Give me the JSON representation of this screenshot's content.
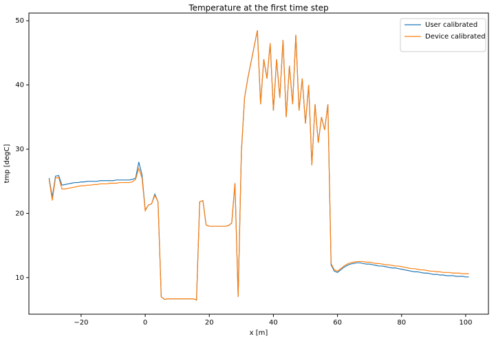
{
  "chart_data": {
    "type": "line",
    "title": "Temperature at the first time step",
    "x_label": "x [m]",
    "y_label": "tmp [degC]",
    "x": [
      -30,
      -29,
      -28,
      -27,
      -26,
      -25,
      -24,
      -23,
      -22,
      -21,
      -20,
      -19,
      -18,
      -17,
      -16,
      -15,
      -14,
      -13,
      -12,
      -11,
      -10,
      -9,
      -8,
      -7,
      -6,
      -5,
      -4,
      -3,
      -2,
      -1,
      0,
      1,
      2,
      3,
      4,
      5,
      6,
      7,
      8,
      9,
      10,
      11,
      12,
      13,
      14,
      15,
      16,
      17,
      18,
      19,
      20,
      21,
      22,
      23,
      24,
      25,
      26,
      27,
      28,
      29,
      30,
      31,
      32,
      33,
      34,
      35,
      36,
      37,
      38,
      39,
      40,
      41,
      42,
      43,
      44,
      45,
      46,
      47,
      48,
      49,
      50,
      51,
      52,
      53,
      54,
      55,
      56,
      57,
      58,
      59,
      60,
      61,
      62,
      63,
      64,
      65,
      66,
      67,
      68,
      69,
      70,
      71,
      72,
      73,
      74,
      75,
      76,
      77,
      78,
      79,
      80,
      81,
      82,
      83,
      84,
      85,
      86,
      87,
      88,
      89,
      90,
      91,
      92,
      93,
      94,
      95,
      96,
      97,
      98,
      99,
      100,
      101
    ],
    "series": [
      {
        "name": "User calibrated",
        "color": "#1f77b4",
        "values": [
          25.5,
          22.5,
          25.8,
          25.9,
          24.4,
          24.5,
          24.6,
          24.7,
          24.8,
          24.8,
          24.9,
          24.9,
          25.0,
          25.0,
          25.0,
          25.0,
          25.1,
          25.1,
          25.1,
          25.1,
          25.1,
          25.2,
          25.2,
          25.2,
          25.2,
          25.2,
          25.3,
          25.5,
          28.0,
          26.0,
          20.5,
          21.3,
          21.5,
          23.0,
          21.8,
          7.0,
          6.6,
          6.7,
          6.7,
          6.7,
          6.7,
          6.7,
          6.7,
          6.7,
          6.7,
          6.7,
          6.5,
          21.8,
          22.0,
          18.2,
          18.0,
          18.0,
          18.0,
          18.0,
          18.0,
          18.0,
          18.1,
          18.5,
          24.7,
          7.0,
          29.5,
          38.0,
          41.0,
          43.5,
          46.0,
          48.5,
          37.0,
          44.0,
          41.0,
          46.5,
          36.0,
          44.0,
          38.0,
          47.0,
          35.0,
          43.0,
          37.0,
          47.8,
          36.0,
          41.0,
          34.0,
          40.0,
          27.5,
          37.0,
          31.0,
          35.0,
          33.0,
          37.0,
          12.0,
          11.0,
          10.8,
          11.2,
          11.6,
          11.9,
          12.1,
          12.2,
          12.3,
          12.3,
          12.2,
          12.1,
          12.1,
          12.0,
          11.9,
          11.8,
          11.8,
          11.7,
          11.6,
          11.5,
          11.5,
          11.4,
          11.3,
          11.2,
          11.1,
          11.0,
          10.9,
          10.9,
          10.8,
          10.7,
          10.7,
          10.6,
          10.5,
          10.5,
          10.4,
          10.4,
          10.3,
          10.3,
          10.3,
          10.2,
          10.2,
          10.2,
          10.1,
          10.1
        ]
      },
      {
        "name": "Device calibrated",
        "color": "#ff7f0e",
        "values": [
          25.3,
          22.0,
          25.5,
          25.6,
          23.8,
          23.8,
          23.9,
          24.0,
          24.1,
          24.2,
          24.3,
          24.3,
          24.4,
          24.4,
          24.5,
          24.5,
          24.6,
          24.6,
          24.6,
          24.7,
          24.7,
          24.7,
          24.8,
          24.8,
          24.8,
          24.8,
          24.9,
          25.3,
          27.0,
          25.5,
          20.4,
          21.3,
          21.5,
          22.8,
          21.8,
          7.0,
          6.6,
          6.7,
          6.7,
          6.7,
          6.7,
          6.7,
          6.7,
          6.7,
          6.7,
          6.7,
          6.5,
          21.8,
          22.0,
          18.2,
          18.0,
          18.0,
          18.0,
          18.0,
          18.0,
          18.0,
          18.1,
          18.5,
          24.7,
          7.0,
          29.5,
          38.0,
          41.0,
          43.5,
          46.0,
          48.5,
          37.0,
          44.0,
          41.0,
          46.5,
          36.0,
          44.0,
          38.0,
          47.0,
          35.0,
          43.0,
          37.0,
          47.8,
          36.0,
          41.0,
          34.0,
          40.0,
          27.5,
          37.0,
          31.0,
          35.0,
          33.0,
          37.0,
          12.2,
          11.2,
          11.0,
          11.4,
          11.8,
          12.1,
          12.3,
          12.4,
          12.5,
          12.5,
          12.5,
          12.4,
          12.4,
          12.3,
          12.2,
          12.2,
          12.1,
          12.0,
          12.0,
          11.9,
          11.8,
          11.8,
          11.7,
          11.6,
          11.5,
          11.4,
          11.4,
          11.3,
          11.2,
          11.2,
          11.1,
          11.0,
          11.0,
          10.9,
          10.9,
          10.8,
          10.8,
          10.8,
          10.7,
          10.7,
          10.7,
          10.6,
          10.6,
          10.6
        ]
      }
    ],
    "xlim": [
      -36.3,
      107.1
    ],
    "ylim": [
      4.3,
      51.2
    ],
    "xticks": [
      {
        "value": -20,
        "label": "−20"
      },
      0,
      20,
      40,
      60,
      80,
      100
    ],
    "yticks": [
      10,
      20,
      30,
      40,
      50
    ],
    "grid": false,
    "legend": "upper right"
  }
}
